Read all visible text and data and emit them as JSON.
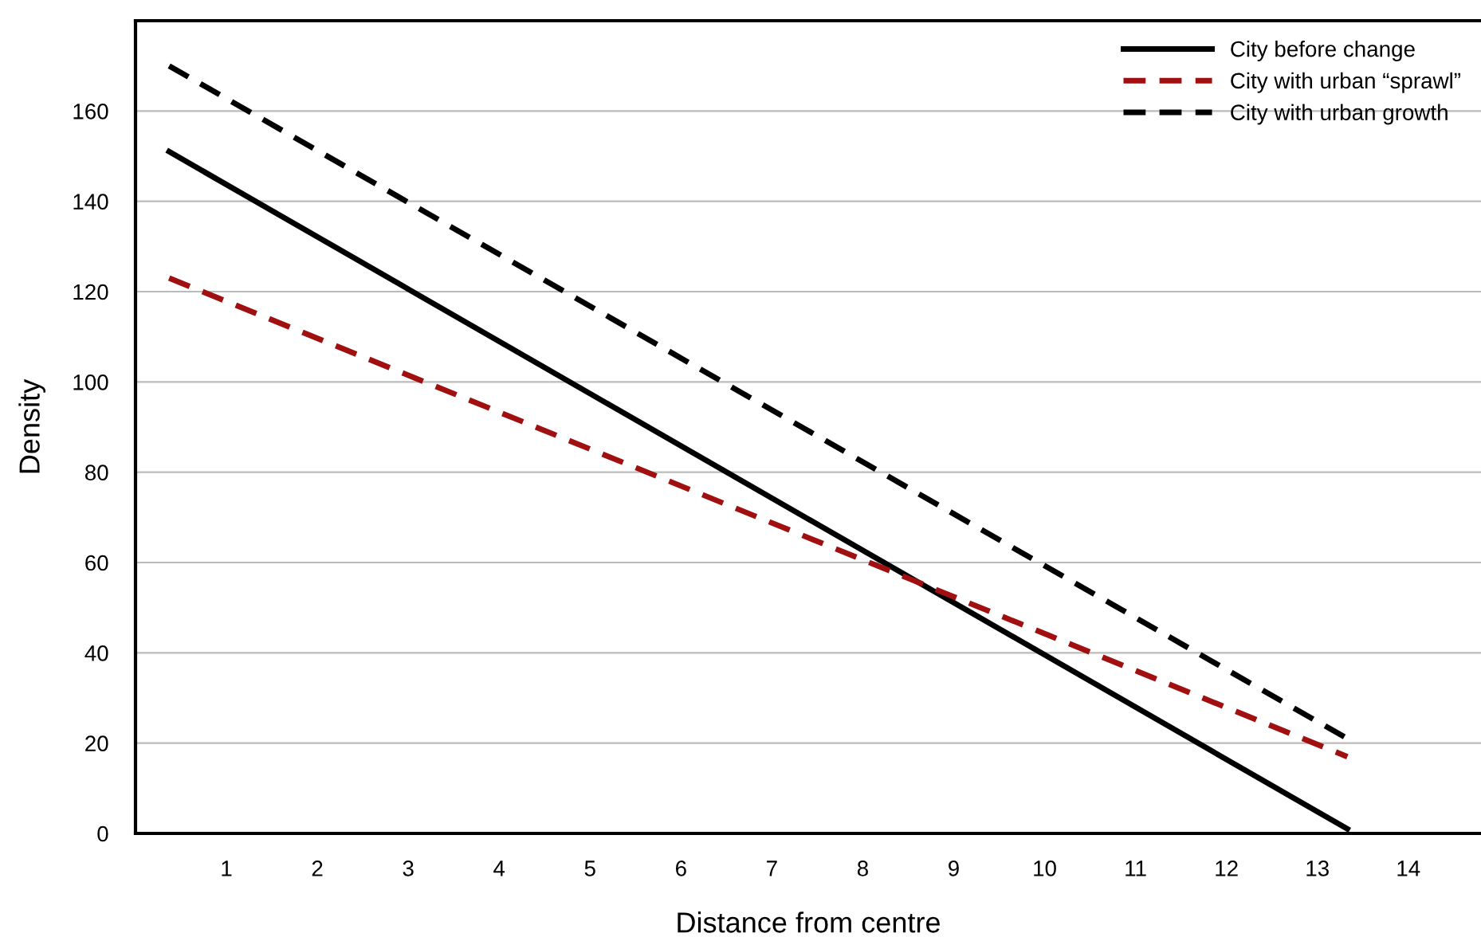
{
  "chart_data": {
    "type": "line",
    "xlabel": "Distance from centre",
    "ylabel": "Density",
    "xlim": [
      0,
      14.8
    ],
    "ylim": [
      0,
      180
    ],
    "xticks": [
      1,
      2,
      3,
      4,
      5,
      6,
      7,
      8,
      9,
      10,
      11,
      12,
      13,
      14
    ],
    "yticks": [
      0,
      20,
      40,
      60,
      80,
      100,
      120,
      140,
      160
    ],
    "grid": "y",
    "legend": "top right",
    "marker": "none",
    "x": [
      0.37,
      13.33
    ],
    "series": [
      {
        "name": "City before change",
        "color": "#000000",
        "line_style": "solid",
        "values": [
          151,
          1
        ]
      },
      {
        "name": "City with urban “sprawl”",
        "color": "#a01010",
        "line_style": "dashed",
        "values": [
          123,
          17
        ]
      },
      {
        "name": "City with urban growth",
        "color": "#000000",
        "line_style": "dashed",
        "values": [
          170,
          21
        ]
      }
    ]
  }
}
